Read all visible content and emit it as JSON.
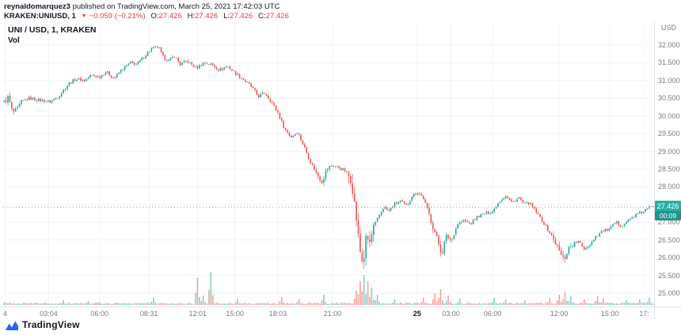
{
  "attribution": {
    "user": "reynaldomarquez3",
    "rest": " published on TradingView.com, March 25, 2021 17:42:03 UTC"
  },
  "symbol_line": {
    "symbol": "KRAKEN:UNIUSD, 1",
    "direction_icon": "▼",
    "change": "−0.059 (−0.21%)",
    "ohlc": [
      {
        "label": "O:",
        "value": "27.426"
      },
      {
        "label": "H:",
        "value": "27.426"
      },
      {
        "label": "L:",
        "value": "27.426"
      },
      {
        "label": "C:",
        "value": "27.426"
      }
    ]
  },
  "legend": {
    "title": "UNI / USD, 1, KRAKEN",
    "vol": "Vol"
  },
  "price_axis": {
    "currency": "USD",
    "ticks": [
      "32.000",
      "31.500",
      "31.000",
      "30.500",
      "30.000",
      "29.500",
      "29.000",
      "28.500",
      "28.000",
      "27.500",
      "27.000",
      "26.500",
      "26.000",
      "25.500",
      "25.000"
    ],
    "last_price": "27.426",
    "countdown": "00:09"
  },
  "footer": {
    "brand": "TradingView"
  },
  "colors": {
    "up": "#26a69a",
    "down": "#ef5350",
    "header_red": "#f23645",
    "badge": "#26b0a6",
    "badge_dark": "#1f968d",
    "grid": "#f0f3fa",
    "axis_text": "#787b86",
    "dark_text": "#131722",
    "brand_blue": "#2962ff"
  },
  "chart_data": {
    "type": "candlestick",
    "symbol": "KRAKEN:UNIUSD",
    "interval": "1",
    "title": "UNI / USD, 1, KRAKEN",
    "price_ticks": [
      32.0,
      31.5,
      31.0,
      30.5,
      30.0,
      29.5,
      29.0,
      28.5,
      28.0,
      27.5,
      27.0,
      26.5,
      26.0,
      25.5,
      25.0
    ],
    "ylim": [
      24.6,
      32.6
    ],
    "last_price": 27.426,
    "last_change": -0.059,
    "last_change_pct": -0.21,
    "time_labels": [
      {
        "text": "4",
        "pos": 0.003,
        "bold": false
      },
      {
        "text": "03:04",
        "pos": 0.07,
        "bold": false
      },
      {
        "text": "06:00",
        "pos": 0.148,
        "bold": false
      },
      {
        "text": "08:31",
        "pos": 0.224,
        "bold": false
      },
      {
        "text": "12:01",
        "pos": 0.299,
        "bold": false
      },
      {
        "text": "15:00",
        "pos": 0.356,
        "bold": false
      },
      {
        "text": "18:03",
        "pos": 0.422,
        "bold": false
      },
      {
        "text": "21:00",
        "pos": 0.506,
        "bold": false
      },
      {
        "text": "25",
        "pos": 0.636,
        "bold": true
      },
      {
        "text": "03:00",
        "pos": 0.688,
        "bold": false
      },
      {
        "text": "06:00",
        "pos": 0.752,
        "bold": false
      },
      {
        "text": "12:00",
        "pos": 0.854,
        "bold": false
      },
      {
        "text": "15:00",
        "pos": 0.932,
        "bold": false
      },
      {
        "text": "17:",
        "pos": 0.985,
        "bold": false
      }
    ],
    "price_path": [
      [
        0.003,
        30.4
      ],
      [
        0.008,
        30.55
      ],
      [
        0.014,
        30.1
      ],
      [
        0.02,
        30.15
      ],
      [
        0.028,
        30.4
      ],
      [
        0.04,
        30.5
      ],
      [
        0.055,
        30.45
      ],
      [
        0.072,
        30.4
      ],
      [
        0.085,
        30.55
      ],
      [
        0.1,
        30.9
      ],
      [
        0.112,
        31.05
      ],
      [
        0.125,
        31.0
      ],
      [
        0.135,
        31.15
      ],
      [
        0.148,
        31.1
      ],
      [
        0.158,
        31.25
      ],
      [
        0.17,
        31.05
      ],
      [
        0.182,
        31.3
      ],
      [
        0.195,
        31.5
      ],
      [
        0.205,
        31.45
      ],
      [
        0.215,
        31.65
      ],
      [
        0.228,
        31.9
      ],
      [
        0.238,
        31.95
      ],
      [
        0.246,
        31.65
      ],
      [
        0.255,
        31.55
      ],
      [
        0.263,
        31.7
      ],
      [
        0.272,
        31.45
      ],
      [
        0.282,
        31.55
      ],
      [
        0.297,
        31.35
      ],
      [
        0.308,
        31.5
      ],
      [
        0.32,
        31.45
      ],
      [
        0.332,
        31.3
      ],
      [
        0.345,
        31.4
      ],
      [
        0.357,
        31.2
      ],
      [
        0.368,
        31.05
      ],
      [
        0.38,
        30.85
      ],
      [
        0.392,
        30.55
      ],
      [
        0.402,
        30.65
      ],
      [
        0.412,
        30.4
      ],
      [
        0.423,
        30.05
      ],
      [
        0.432,
        29.65
      ],
      [
        0.442,
        29.4
      ],
      [
        0.452,
        29.55
      ],
      [
        0.462,
        29.15
      ],
      [
        0.472,
        28.7
      ],
      [
        0.482,
        28.35
      ],
      [
        0.49,
        28.15
      ],
      [
        0.497,
        28.5
      ],
      [
        0.505,
        28.6
      ],
      [
        0.515,
        28.55
      ],
      [
        0.525,
        28.45
      ],
      [
        0.535,
        28.2
      ],
      [
        0.542,
        27.2
      ],
      [
        0.548,
        26.2
      ],
      [
        0.553,
        25.8
      ],
      [
        0.558,
        26.6
      ],
      [
        0.563,
        26.4
      ],
      [
        0.57,
        26.9
      ],
      [
        0.578,
        27.2
      ],
      [
        0.585,
        27.45
      ],
      [
        0.592,
        27.3
      ],
      [
        0.6,
        27.5
      ],
      [
        0.61,
        27.6
      ],
      [
        0.62,
        27.45
      ],
      [
        0.628,
        27.75
      ],
      [
        0.637,
        27.85
      ],
      [
        0.645,
        27.7
      ],
      [
        0.652,
        27.35
      ],
      [
        0.66,
        26.9
      ],
      [
        0.668,
        26.45
      ],
      [
        0.674,
        26.1
      ],
      [
        0.68,
        26.6
      ],
      [
        0.689,
        26.5
      ],
      [
        0.698,
        26.95
      ],
      [
        0.708,
        27.05
      ],
      [
        0.718,
        26.95
      ],
      [
        0.728,
        27.15
      ],
      [
        0.74,
        27.25
      ],
      [
        0.752,
        27.3
      ],
      [
        0.762,
        27.6
      ],
      [
        0.772,
        27.75
      ],
      [
        0.782,
        27.55
      ],
      [
        0.792,
        27.7
      ],
      [
        0.8,
        27.5
      ],
      [
        0.808,
        27.55
      ],
      [
        0.818,
        27.3
      ],
      [
        0.828,
        27.05
      ],
      [
        0.838,
        26.75
      ],
      [
        0.848,
        26.45
      ],
      [
        0.856,
        26.1
      ],
      [
        0.862,
        25.95
      ],
      [
        0.868,
        26.25
      ],
      [
        0.876,
        26.4
      ],
      [
        0.884,
        26.45
      ],
      [
        0.892,
        26.25
      ],
      [
        0.9,
        26.35
      ],
      [
        0.91,
        26.6
      ],
      [
        0.92,
        26.75
      ],
      [
        0.932,
        26.8
      ],
      [
        0.941,
        27.0
      ],
      [
        0.95,
        26.9
      ],
      [
        0.96,
        27.05
      ],
      [
        0.972,
        27.2
      ],
      [
        0.983,
        27.3
      ],
      [
        0.994,
        27.43
      ]
    ],
    "volatility_regions": [
      [
        0.004,
        0.022,
        1.6
      ],
      [
        0.478,
        0.502,
        1.5
      ],
      [
        0.53,
        0.572,
        3.2
      ],
      [
        0.652,
        0.69,
        1.8
      ],
      [
        0.843,
        0.876,
        1.8
      ]
    ],
    "volume_spikes": [
      [
        0.09,
        6
      ],
      [
        0.13,
        5
      ],
      [
        0.228,
        9
      ],
      [
        0.296,
        34
      ],
      [
        0.306,
        12
      ],
      [
        0.318,
        42
      ],
      [
        0.36,
        8
      ],
      [
        0.425,
        10
      ],
      [
        0.452,
        8
      ],
      [
        0.49,
        13
      ],
      [
        0.54,
        18
      ],
      [
        0.548,
        30
      ],
      [
        0.553,
        38
      ],
      [
        0.558,
        30
      ],
      [
        0.565,
        22
      ],
      [
        0.575,
        13
      ],
      [
        0.6,
        7
      ],
      [
        0.645,
        9
      ],
      [
        0.662,
        15
      ],
      [
        0.672,
        20
      ],
      [
        0.681,
        12
      ],
      [
        0.7,
        8
      ],
      [
        0.752,
        9
      ],
      [
        0.77,
        7
      ],
      [
        0.8,
        6
      ],
      [
        0.838,
        9
      ],
      [
        0.852,
        13
      ],
      [
        0.862,
        17
      ],
      [
        0.871,
        11
      ],
      [
        0.89,
        7
      ],
      [
        0.913,
        11
      ],
      [
        0.922,
        8
      ],
      [
        0.955,
        6
      ],
      [
        0.975,
        7
      ],
      [
        0.992,
        9
      ]
    ]
  }
}
